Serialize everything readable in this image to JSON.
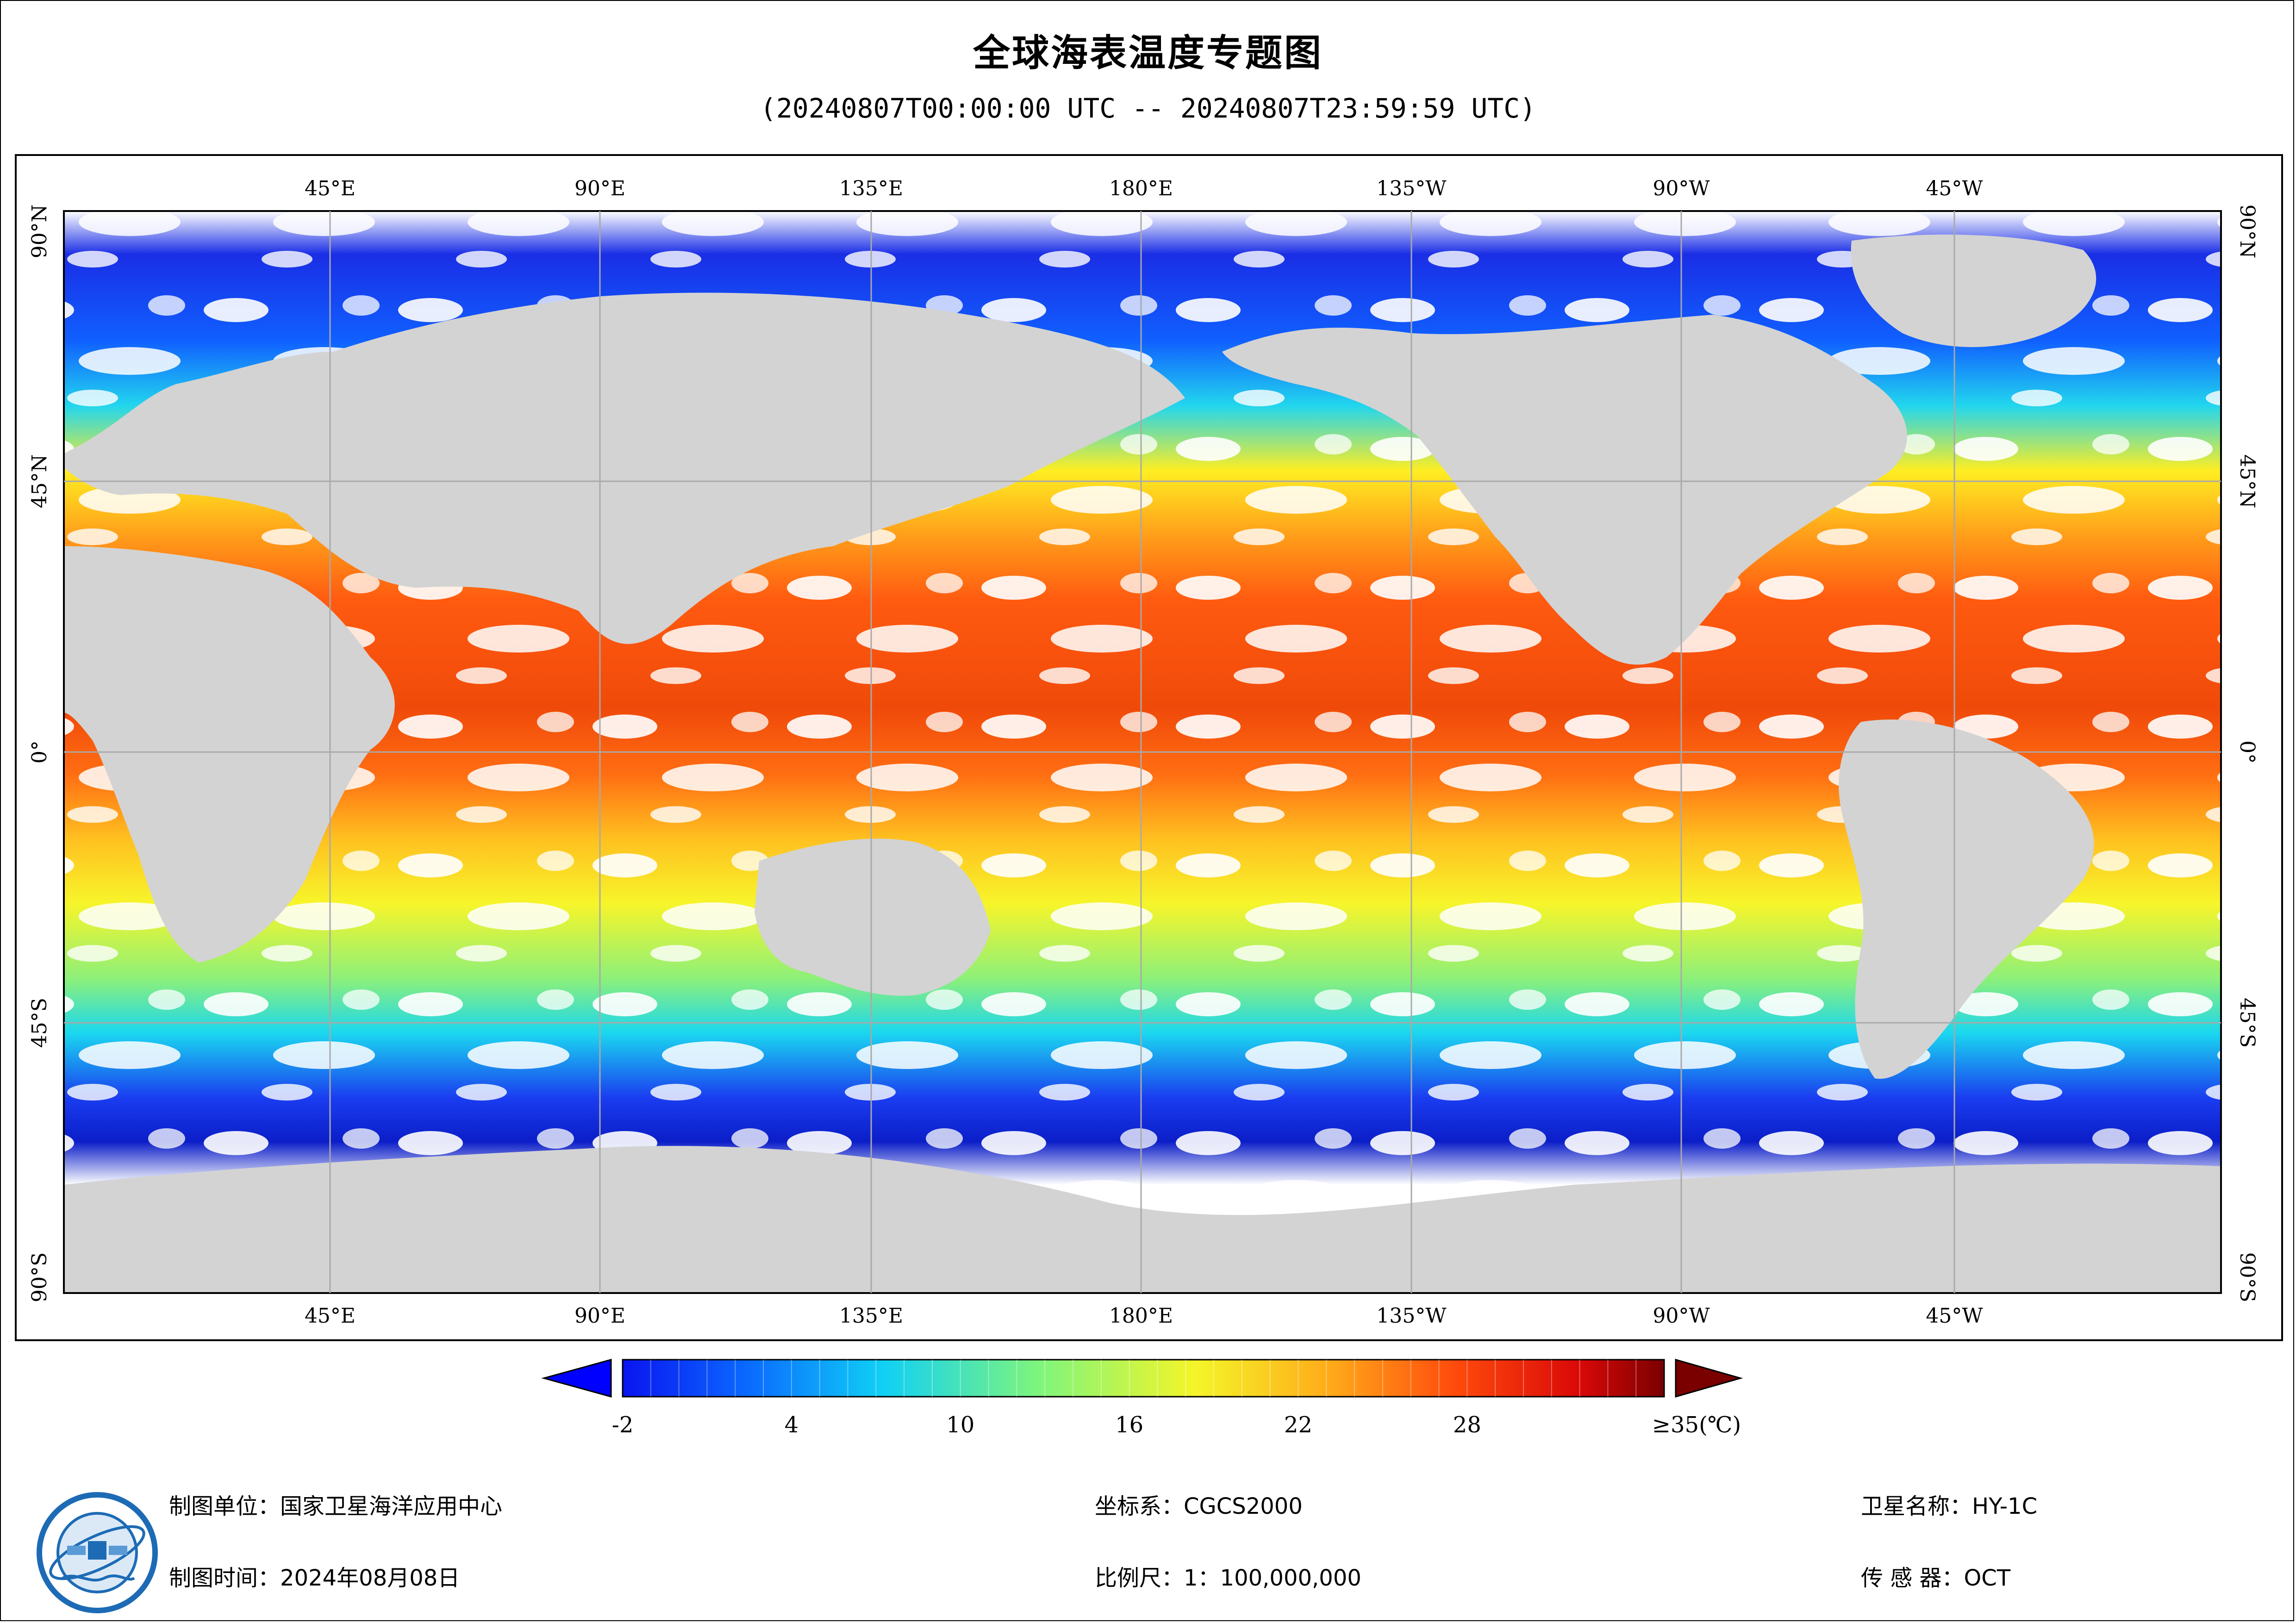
{
  "title": "全球海表温度专题图",
  "subtitle": "(20240807T00:00:00 UTC -- 20240807T23:59:59 UTC)",
  "map": {
    "top_lon_labels": [
      "45°E",
      "90°E",
      "135°E",
      "180°E",
      "135°W",
      "90°W",
      "45°W"
    ],
    "bottom_lon_labels": [
      "45°E",
      "90°E",
      "135°E",
      "180°E",
      "135°W",
      "90°W",
      "45°W"
    ],
    "left_lat_labels": [
      "90°N",
      "45°N",
      "0°",
      "45°S",
      "90°S"
    ],
    "right_lat_labels": [
      "90°N",
      "45°N",
      "0°",
      "45°S",
      "90°S"
    ],
    "colors": {
      "land": "#d3d3d3",
      "cloud_nodata": "#ffffff",
      "grid": "#a9a9a9"
    }
  },
  "legend": {
    "tick_labels": [
      "-2",
      "4",
      "10",
      "16",
      "22",
      "28",
      "≥35(℃)"
    ],
    "min_value": -2,
    "max_value": 35,
    "unit": "℃",
    "colors": {
      "under": "#0000ff",
      "over": "#7a0000"
    }
  },
  "info": {
    "org": "制图单位：国家卫星海洋应用中心",
    "date": "制图时间：2024年08月08日",
    "crs": "坐标系：CGCS2000",
    "scale": "比例尺：1：100,000,000",
    "satellite": "卫星名称：HY-1C",
    "sensor": "传 感 器：OCT"
  }
}
